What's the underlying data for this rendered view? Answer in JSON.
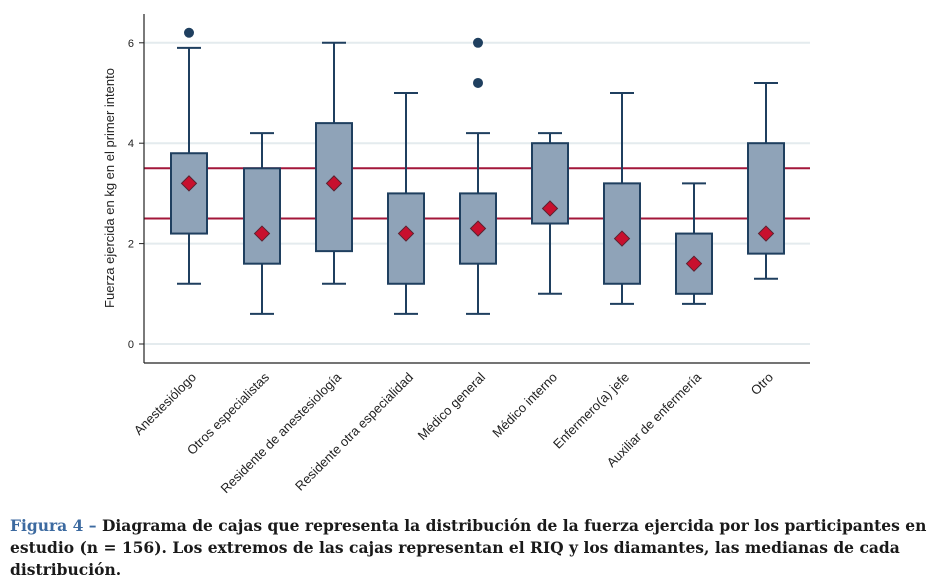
{
  "chart_data": {
    "type": "box",
    "title": "",
    "xlabel": "",
    "ylabel": "Fuerza ejercida en kg en el primer intento",
    "ylim": [
      -0.4,
      6.6
    ],
    "yticks": [
      0,
      2,
      4,
      6
    ],
    "grid": true,
    "reference_lines": [
      2.5,
      3.5
    ],
    "categories": [
      "Anestesiólogo",
      "Otros especialistas",
      "Residente de anestesiología",
      "Residente otra especialidad",
      "Médico general",
      "Médico interno",
      "Enfermero(a) jefe",
      "Auxiliar de enfermería",
      "Otro"
    ],
    "boxes": [
      {
        "whisker_low": 1.2,
        "q1": 2.2,
        "median": 3.2,
        "q3": 3.8,
        "whisker_high": 5.9,
        "outliers": [
          6.2
        ]
      },
      {
        "whisker_low": 0.6,
        "q1": 1.6,
        "median": 2.2,
        "q3": 3.5,
        "whisker_high": 4.2,
        "outliers": []
      },
      {
        "whisker_low": 1.2,
        "q1": 1.85,
        "median": 3.2,
        "q3": 4.4,
        "whisker_high": 6.0,
        "outliers": []
      },
      {
        "whisker_low": 0.6,
        "q1": 1.2,
        "median": 2.2,
        "q3": 3.0,
        "whisker_high": 5.0,
        "outliers": []
      },
      {
        "whisker_low": 0.6,
        "q1": 1.6,
        "median": 2.3,
        "q3": 3.0,
        "whisker_high": 4.2,
        "outliers": [
          5.2,
          6.0
        ]
      },
      {
        "whisker_low": 1.0,
        "q1": 2.4,
        "median": 2.7,
        "q3": 4.0,
        "whisker_high": 4.2,
        "outliers": []
      },
      {
        "whisker_low": 0.8,
        "q1": 1.2,
        "median": 2.1,
        "q3": 3.2,
        "whisker_high": 5.0,
        "outliers": []
      },
      {
        "whisker_low": 0.8,
        "q1": 1.0,
        "median": 1.6,
        "q3": 2.2,
        "whisker_high": 3.2,
        "outliers": []
      },
      {
        "whisker_low": 1.3,
        "q1": 1.8,
        "median": 2.2,
        "q3": 4.0,
        "whisker_high": 5.2,
        "outliers": []
      }
    ],
    "colors": {
      "box_fill": "#8fa3b8",
      "box_stroke": "#1f3f5f",
      "median": "#c8102e",
      "outlier": "#1f3f5f",
      "reference": "#a3173a",
      "grid": "#e4ebee"
    }
  },
  "caption": {
    "label": "Figura 4 –",
    "text": " Diagrama de cajas que representa la distribución de la fuerza ejercida por los participantes en estudio (n = 156). Los extremos de las cajas representan el RIQ y los diamantes, las medianas de cada distribución."
  }
}
